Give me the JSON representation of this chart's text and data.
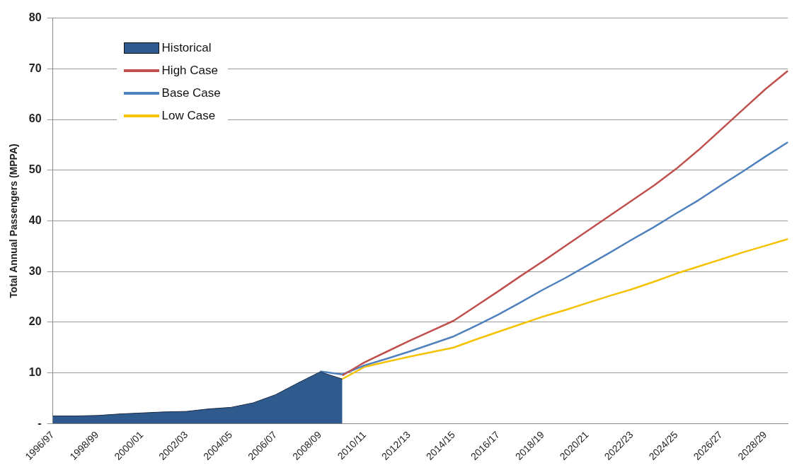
{
  "chart_data": {
    "type": "line",
    "ylabel": "Total Annual Passengers (MPPA)",
    "categories": [
      "1996/97",
      null,
      "1998/99",
      null,
      "2000/01",
      null,
      "2002/03",
      null,
      "2004/05",
      null,
      "2006/07",
      null,
      "2008/09",
      null,
      "2010/11",
      null,
      "2012/13",
      null,
      "2014/15",
      null,
      "2016/17",
      null,
      "2018/19",
      null,
      "2020/21",
      null,
      "2022/23",
      null,
      "2024/25",
      null,
      "2026/27",
      null,
      "2028/29",
      null
    ],
    "series": [
      {
        "name": "Historical",
        "type": "area",
        "color": "#2e5a8e",
        "values": [
          1.5,
          1.5,
          1.6,
          1.9,
          2.1,
          2.3,
          2.4,
          2.9,
          3.2,
          4.1,
          5.7,
          8.0,
          10.2,
          8.8,
          null,
          null,
          null,
          null,
          null,
          null,
          null,
          null,
          null,
          null,
          null,
          null,
          null,
          null,
          null,
          null,
          null,
          null,
          null,
          null
        ]
      },
      {
        "name": "High Case",
        "type": "line",
        "color": "#c0504d",
        "values": [
          null,
          null,
          null,
          null,
          null,
          null,
          null,
          null,
          null,
          null,
          null,
          null,
          null,
          9.5,
          12.1,
          14.2,
          16.3,
          18.3,
          20.3,
          23.2,
          26.1,
          29.1,
          32,
          35,
          38,
          41,
          44,
          47,
          50.3,
          54,
          58,
          62,
          66,
          69.6
        ]
      },
      {
        "name": "Base Case",
        "type": "line",
        "color": "#4f81bd",
        "values": [
          null,
          null,
          null,
          null,
          null,
          null,
          null,
          null,
          null,
          null,
          null,
          null,
          10.3,
          9.7,
          11.5,
          12.8,
          14.2,
          15.7,
          17.2,
          19.3,
          21.5,
          23.9,
          26.4,
          28.7,
          31.2,
          33.7,
          36.3,
          38.8,
          41.5,
          44.1,
          47,
          49.8,
          52.7,
          55.5
        ]
      },
      {
        "name": "Low Case",
        "type": "line",
        "color": "#f5c200",
        "values": [
          null,
          null,
          null,
          null,
          null,
          null,
          null,
          null,
          null,
          null,
          null,
          null,
          null,
          8.8,
          11.2,
          12.2,
          13.2,
          14.1,
          15.0,
          16.6,
          18.1,
          19.6,
          21.1,
          22.4,
          23.8,
          25.2,
          26.5,
          28,
          29.6,
          31,
          32.4,
          33.8,
          35.1,
          36.4
        ]
      }
    ],
    "ylim": [
      0,
      80
    ],
    "yticks": [
      {
        "value": 0,
        "label": "-"
      },
      10,
      20,
      30,
      40,
      50,
      60,
      70,
      80
    ],
    "grid": "y",
    "legend": "top left",
    "marker": "none",
    "line_style": "solid"
  }
}
